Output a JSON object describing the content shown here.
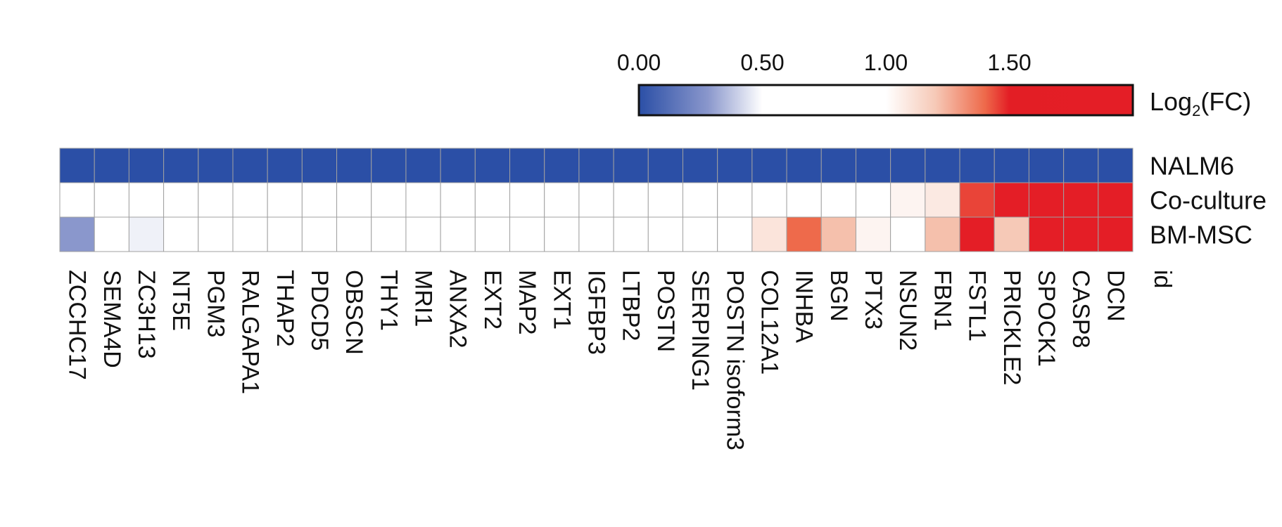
{
  "chart_data": {
    "type": "heatmap",
    "legend": {
      "label": "Log",
      "subscript": "2",
      "label_suffix": "(FC)",
      "ticks": [
        "0.00",
        "0.50",
        "1.00",
        "1.50"
      ],
      "tick_values": [
        0.0,
        0.5,
        1.0,
        1.5
      ],
      "range": [
        0.0,
        2.0
      ],
      "gradient": [
        {
          "value": 0.0,
          "color": "#2B4FA6"
        },
        {
          "value": 0.28,
          "color": "#8A97CC"
        },
        {
          "value": 0.5,
          "color": "#FFFFFF"
        },
        {
          "value": 1.0,
          "color": "#FFFFFF"
        },
        {
          "value": 1.2,
          "color": "#F6C9B7"
        },
        {
          "value": 1.4,
          "color": "#EE6A4B"
        },
        {
          "value": 1.5,
          "color": "#E31E25"
        },
        {
          "value": 2.0,
          "color": "#E41E26"
        }
      ],
      "placement": "top-right"
    },
    "rows": [
      "NALM6",
      "Co-culture",
      "BM-MSC"
    ],
    "column_axis_label": "id",
    "columns": [
      "ZCCHC17",
      "SEMA4D",
      "ZC3H13",
      "NT5E",
      "PGM3",
      "RALGAPA1",
      "THAP2",
      "PDCD5",
      "OBSCN",
      "THY1",
      "MRI1",
      "ANXA2",
      "EXT2",
      "MAP2",
      "EXT1",
      "IGFBP3",
      "LTBP2",
      "POSTN",
      "SERPING1",
      "POSTN isoform3",
      "COL12A1",
      "INHBA",
      "BGN",
      "PTX3",
      "NSUN2",
      "FBN1",
      "FSTL1",
      "PRICKLE2",
      "SPOCK1",
      "CASP8",
      "DCN"
    ],
    "values": [
      [
        0.0,
        0.0,
        0.0,
        0.0,
        0.0,
        0.0,
        0.0,
        0.0,
        0.0,
        0.0,
        0.0,
        0.0,
        0.0,
        0.0,
        0.0,
        0.0,
        0.0,
        0.0,
        0.0,
        0.0,
        0.0,
        0.0,
        0.0,
        0.0,
        0.0,
        0.0,
        0.0,
        0.0,
        0.0,
        0.0,
        0.0
      ],
      [
        0.75,
        0.75,
        0.75,
        0.75,
        0.75,
        0.75,
        0.75,
        0.75,
        0.75,
        0.75,
        0.75,
        0.75,
        0.75,
        0.75,
        0.75,
        0.75,
        0.75,
        0.75,
        0.75,
        0.75,
        0.75,
        0.75,
        0.75,
        0.75,
        1.04,
        1.08,
        1.45,
        1.85,
        1.9,
        1.9,
        1.9
      ],
      [
        0.28,
        0.75,
        0.47,
        0.75,
        0.75,
        0.75,
        0.75,
        0.75,
        0.75,
        0.75,
        0.75,
        0.75,
        0.75,
        0.75,
        0.75,
        0.75,
        0.75,
        0.75,
        0.75,
        0.75,
        1.1,
        1.4,
        1.22,
        1.04,
        0.75,
        1.22,
        1.9,
        1.2,
        1.9,
        1.9,
        1.9
      ]
    ],
    "grid": true
  }
}
